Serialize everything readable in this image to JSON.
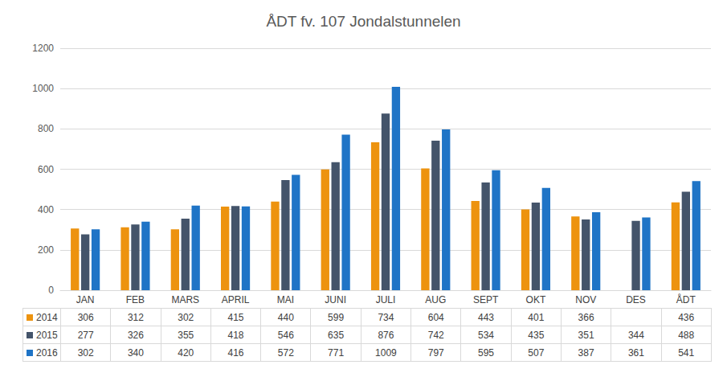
{
  "chart_data": {
    "type": "bar",
    "title": "ÅDT fv. 107 Jondalstunnelen",
    "categories": [
      "JAN",
      "FEB",
      "MARS",
      "APRIL",
      "MAI",
      "JUNI",
      "JULI",
      "AUG",
      "SEPT",
      "OKT",
      "NOV",
      "DES",
      "ÅDT"
    ],
    "series": [
      {
        "name": "2014",
        "color": "#ED930F",
        "values": [
          306,
          312,
          302,
          415,
          440,
          599,
          734,
          604,
          443,
          401,
          366,
          null,
          436
        ]
      },
      {
        "name": "2015",
        "color": "#44546A",
        "values": [
          277,
          326,
          355,
          418,
          546,
          635,
          876,
          742,
          534,
          435,
          351,
          344,
          488
        ]
      },
      {
        "name": "2016",
        "color": "#1F74C6",
        "values": [
          302,
          340,
          420,
          416,
          572,
          771,
          1009,
          797,
          595,
          507,
          387,
          361,
          541
        ]
      }
    ],
    "ylim": [
      0,
      1200
    ],
    "yticks": [
      0,
      200,
      400,
      600,
      800,
      1000,
      1200
    ],
    "grid": true
  }
}
